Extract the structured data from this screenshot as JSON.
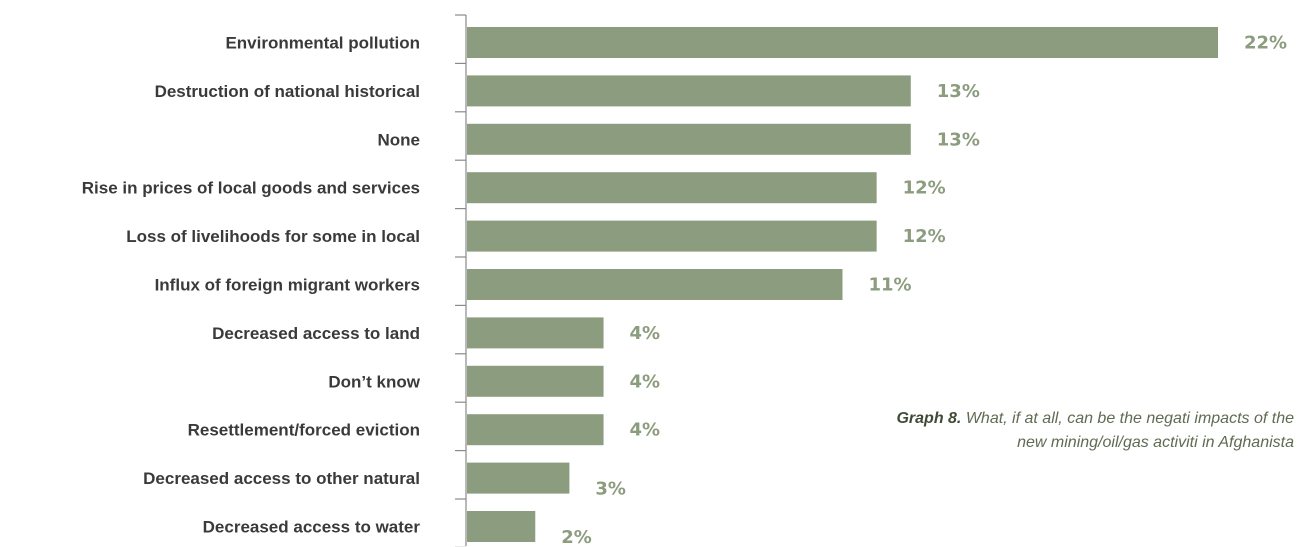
{
  "colors": {
    "bar": "#8c9c7e",
    "value_label": "#8c9c7e",
    "axis": "#8a8a8a",
    "category_label": "#3a3a3a"
  },
  "caption": {
    "bold": "Graph 8.",
    "text": " What, if at all, can be the negati impacts of the new mining/oil/gas activiti in Afghanista"
  },
  "chart_data": {
    "type": "bar",
    "orientation": "horizontal",
    "categories": [
      "Environmental pollution",
      "Destruction of national historical",
      "None",
      "Rise in prices of local goods and services",
      "Loss of livelihoods for some in local",
      "Influx of foreign migrant workers",
      "Decreased access to land",
      "Don’t know",
      "Resettlement/forced eviction",
      "Decreased access to other natural",
      "Decreased access to water"
    ],
    "values": [
      22,
      13,
      13,
      12,
      12,
      11,
      4,
      4,
      4,
      3,
      2
    ],
    "value_labels": [
      "22%",
      "13%",
      "13%",
      "12%",
      "12%",
      "11%",
      "4%",
      "4%",
      "4%",
      "3%",
      "2%"
    ],
    "unit": "%",
    "title": "",
    "xlabel": "",
    "ylabel": "",
    "xlim": [
      0,
      22
    ],
    "grid": false,
    "legend": "none"
  }
}
